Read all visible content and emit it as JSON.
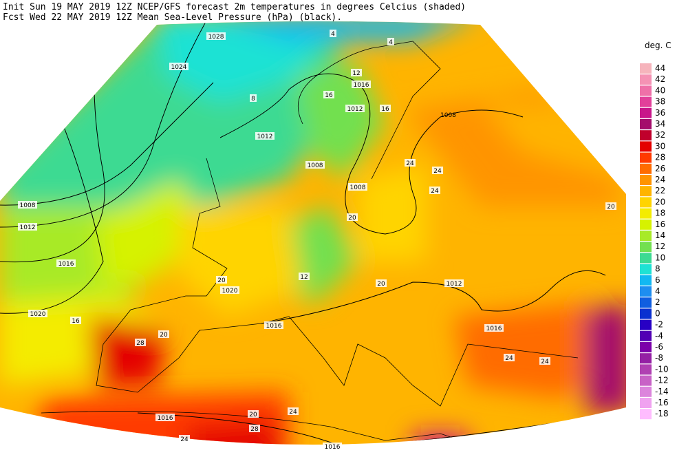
{
  "header": {
    "line1": "Init  Sun 19 MAY 2019 12Z  NCEP/GFS forecast 2m temperatures in degrees Celcius (shaded)",
    "line2": "Fcst Wed 22 MAY 2019 12Z  Mean Sea-Level Pressure (hPa) (black)."
  },
  "legend": {
    "title": "deg. C",
    "items": [
      {
        "value": 44,
        "color": "#f6b4bc"
      },
      {
        "value": 42,
        "color": "#f592b4"
      },
      {
        "value": 40,
        "color": "#ef70a8"
      },
      {
        "value": 38,
        "color": "#e2409a"
      },
      {
        "value": 36,
        "color": "#c8168a"
      },
      {
        "value": 34,
        "color": "#a40c6c"
      },
      {
        "value": 32,
        "color": "#c0002c"
      },
      {
        "value": 30,
        "color": "#e40000"
      },
      {
        "value": 28,
        "color": "#ff3a00"
      },
      {
        "value": 26,
        "color": "#ff6c00"
      },
      {
        "value": 24,
        "color": "#ff9400"
      },
      {
        "value": 22,
        "color": "#ffb400"
      },
      {
        "value": 20,
        "color": "#ffd400"
      },
      {
        "value": 18,
        "color": "#f4ec00"
      },
      {
        "value": 16,
        "color": "#d6f200"
      },
      {
        "value": 14,
        "color": "#a8ea28"
      },
      {
        "value": 12,
        "color": "#72e050"
      },
      {
        "value": 10,
        "color": "#3cda92"
      },
      {
        "value": 8,
        "color": "#1ee2d4"
      },
      {
        "value": 6,
        "color": "#12b8f2"
      },
      {
        "value": 4,
        "color": "#1e8ef0"
      },
      {
        "value": 2,
        "color": "#105ee0"
      },
      {
        "value": 0,
        "color": "#0a30d0"
      },
      {
        "value": -2,
        "color": "#2800c4"
      },
      {
        "value": -4,
        "color": "#5200b4"
      },
      {
        "value": -6,
        "color": "#7c00aa"
      },
      {
        "value": -8,
        "color": "#9420a4"
      },
      {
        "value": -10,
        "color": "#b040b2"
      },
      {
        "value": -12,
        "color": "#c862c6"
      },
      {
        "value": -14,
        "color": "#dc84dc"
      },
      {
        "value": -16,
        "color": "#f0a2f0"
      },
      {
        "value": -18,
        "color": "#ffbcff"
      }
    ]
  },
  "map_labels": [
    "1028",
    "1024",
    "1012",
    "1008",
    "1012",
    "1016",
    "1020",
    "1020",
    "1016",
    "1016",
    "1016",
    "1008",
    "1016",
    "1012",
    "1016",
    "1008",
    "1012",
    "1008",
    "4",
    "4",
    "8",
    "12",
    "16",
    "16",
    "20",
    "20",
    "24",
    "24",
    "24",
    "24",
    "28",
    "20",
    "16",
    "12",
    "20",
    "24",
    "28",
    "20",
    "24",
    "24",
    "20"
  ]
}
